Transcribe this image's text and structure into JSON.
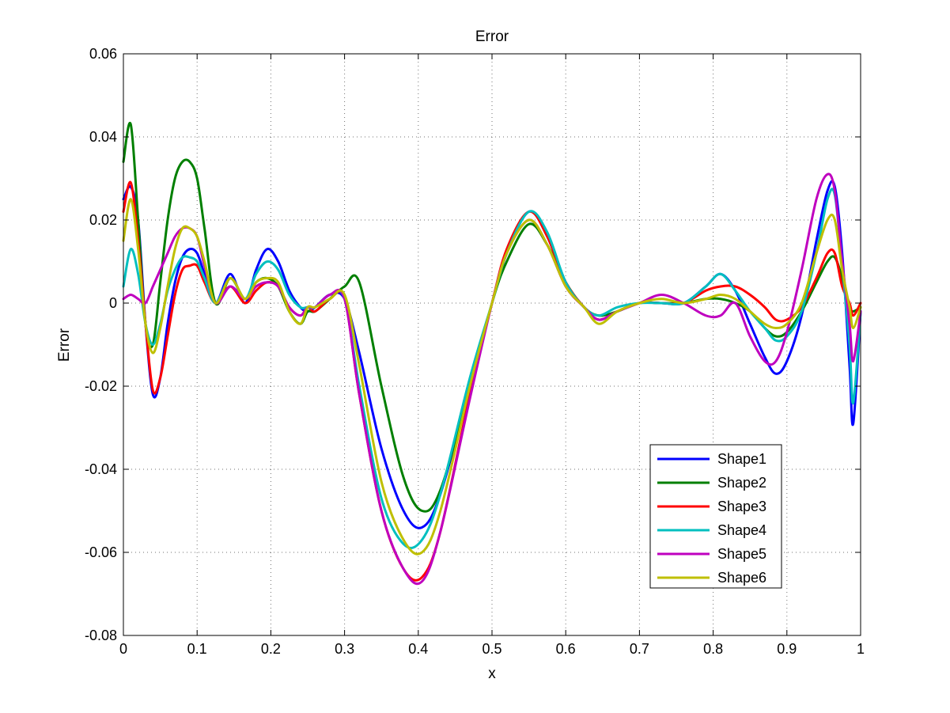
{
  "chart_data": {
    "type": "line",
    "title": "Error",
    "xlabel": "x",
    "ylabel": "Error",
    "xlim": [
      0,
      1
    ],
    "ylim": [
      -0.08,
      0.06
    ],
    "xticks": [
      0,
      0.1,
      0.2,
      0.3,
      0.4,
      0.5,
      0.6,
      0.7,
      0.8,
      0.9,
      1
    ],
    "xtick_labels": [
      "0",
      "0.1",
      "0.2",
      "0.3",
      "0.4",
      "0.5",
      "0.6",
      "0.7",
      "0.8",
      "0.9",
      "1"
    ],
    "yticks": [
      -0.08,
      -0.06,
      -0.04,
      -0.02,
      0,
      0.02,
      0.04,
      0.06
    ],
    "ytick_labels": [
      "-0.08",
      "-0.06",
      "-0.04",
      "-0.02",
      "0",
      "0.02",
      "0.04",
      "0.06"
    ],
    "grid": true,
    "legend_position": "bottom-right",
    "x": [
      0,
      0.01,
      0.02,
      0.03,
      0.04,
      0.05,
      0.06,
      0.07,
      0.08,
      0.09,
      0.1,
      0.11,
      0.125,
      0.145,
      0.165,
      0.18,
      0.195,
      0.21,
      0.225,
      0.24,
      0.25,
      0.26,
      0.28,
      0.3,
      0.32,
      0.35,
      0.38,
      0.405,
      0.43,
      0.47,
      0.5,
      0.52,
      0.55,
      0.575,
      0.6,
      0.625,
      0.645,
      0.67,
      0.7,
      0.73,
      0.76,
      0.79,
      0.81,
      0.83,
      0.85,
      0.87,
      0.885,
      0.9,
      0.92,
      0.94,
      0.955,
      0.965,
      0.975,
      0.985,
      0.99,
      1
    ],
    "series": [
      {
        "name": "Shape1",
        "color": "#0000ff",
        "values": [
          0.025,
          0.028,
          0.02,
          -0.005,
          -0.022,
          -0.018,
          -0.005,
          0.005,
          0.011,
          0.013,
          0.012,
          0.007,
          0.0,
          0.007,
          0.0,
          0.008,
          0.013,
          0.01,
          0.003,
          -0.001,
          -0.002,
          -0.001,
          0.002,
          0.001,
          -0.012,
          -0.035,
          -0.05,
          -0.054,
          -0.046,
          -0.02,
          0.0,
          0.012,
          0.022,
          0.016,
          0.005,
          -0.001,
          -0.004,
          -0.002,
          0.0,
          0.0,
          0.0,
          0.004,
          0.007,
          0.003,
          -0.005,
          -0.013,
          -0.017,
          -0.014,
          -0.003,
          0.015,
          0.027,
          0.028,
          0.012,
          -0.015,
          -0.029,
          -0.002
        ]
      },
      {
        "name": "Shape2",
        "color": "#007f00",
        "values": [
          0.034,
          0.043,
          0.02,
          -0.005,
          -0.01,
          0.005,
          0.02,
          0.03,
          0.034,
          0.034,
          0.03,
          0.018,
          0.0,
          0.006,
          0.001,
          0.005,
          0.006,
          0.004,
          -0.002,
          -0.005,
          -0.002,
          -0.002,
          0.001,
          0.004,
          0.005,
          -0.02,
          -0.042,
          -0.05,
          -0.045,
          -0.02,
          0.0,
          0.01,
          0.019,
          0.014,
          0.005,
          -0.001,
          -0.003,
          -0.002,
          0.0,
          0.0,
          0.0,
          0.001,
          0.001,
          0.0,
          -0.002,
          -0.006,
          -0.008,
          -0.007,
          -0.002,
          0.005,
          0.01,
          0.011,
          0.006,
          -0.001,
          -0.002,
          -0.001
        ]
      },
      {
        "name": "Shape3",
        "color": "#ff0000",
        "values": [
          0.022,
          0.029,
          0.015,
          -0.005,
          -0.021,
          -0.018,
          -0.008,
          0.002,
          0.008,
          0.009,
          0.009,
          0.005,
          0.0,
          0.004,
          0.0,
          0.003,
          0.005,
          0.004,
          -0.001,
          -0.003,
          -0.001,
          -0.002,
          0.001,
          0.001,
          -0.022,
          -0.05,
          -0.064,
          -0.066,
          -0.055,
          -0.022,
          0.0,
          0.013,
          0.022,
          0.016,
          0.005,
          -0.001,
          -0.004,
          -0.002,
          0.0,
          0.0,
          0.0,
          0.003,
          0.004,
          0.004,
          0.002,
          -0.001,
          -0.004,
          -0.004,
          -0.001,
          0.006,
          0.012,
          0.012,
          0.004,
          0.0,
          -0.003,
          0.0
        ]
      },
      {
        "name": "Shape4",
        "color": "#00bfbf",
        "values": [
          0.004,
          0.013,
          0.007,
          -0.005,
          -0.01,
          -0.005,
          0.003,
          0.008,
          0.011,
          0.011,
          0.01,
          0.006,
          0.0,
          0.006,
          0.001,
          0.007,
          0.01,
          0.008,
          0.002,
          -0.001,
          -0.001,
          -0.001,
          0.002,
          0.001,
          -0.02,
          -0.047,
          -0.058,
          -0.057,
          -0.046,
          -0.018,
          0.0,
          0.012,
          0.022,
          0.017,
          0.005,
          -0.001,
          -0.003,
          -0.001,
          0.0,
          0.0,
          0.0,
          0.004,
          0.007,
          0.003,
          -0.002,
          -0.006,
          -0.009,
          -0.008,
          -0.002,
          0.012,
          0.025,
          0.026,
          0.009,
          -0.01,
          -0.024,
          -0.002
        ]
      },
      {
        "name": "Shape5",
        "color": "#bf00bf",
        "values": [
          0.001,
          0.002,
          0.001,
          0.0,
          0.004,
          0.008,
          0.012,
          0.016,
          0.018,
          0.018,
          0.016,
          0.009,
          0.0,
          0.004,
          0.001,
          0.004,
          0.005,
          0.004,
          -0.001,
          -0.003,
          -0.001,
          -0.001,
          0.002,
          0.001,
          -0.022,
          -0.05,
          -0.064,
          -0.067,
          -0.055,
          -0.023,
          0.0,
          0.012,
          0.02,
          0.014,
          0.004,
          -0.001,
          -0.004,
          -0.002,
          0.0,
          0.002,
          0.0,
          -0.003,
          -0.003,
          0.0,
          -0.008,
          -0.014,
          -0.014,
          -0.007,
          0.008,
          0.025,
          0.031,
          0.027,
          0.01,
          -0.005,
          -0.014,
          -0.002
        ]
      },
      {
        "name": "Shape6",
        "color": "#bfbf00",
        "values": [
          0.015,
          0.025,
          0.013,
          -0.005,
          -0.012,
          -0.006,
          0.004,
          0.013,
          0.018,
          0.018,
          0.016,
          0.01,
          0.0,
          0.006,
          0.001,
          0.005,
          0.006,
          0.005,
          -0.002,
          -0.005,
          -0.001,
          -0.001,
          0.001,
          0.002,
          -0.015,
          -0.043,
          -0.057,
          -0.06,
          -0.05,
          -0.02,
          0.0,
          0.012,
          0.02,
          0.014,
          0.004,
          -0.001,
          -0.005,
          -0.002,
          0.0,
          0.001,
          0.0,
          0.001,
          0.002,
          0.001,
          -0.002,
          -0.005,
          -0.006,
          -0.005,
          0.0,
          0.012,
          0.02,
          0.02,
          0.008,
          -0.001,
          -0.006,
          -0.001
        ]
      }
    ]
  }
}
